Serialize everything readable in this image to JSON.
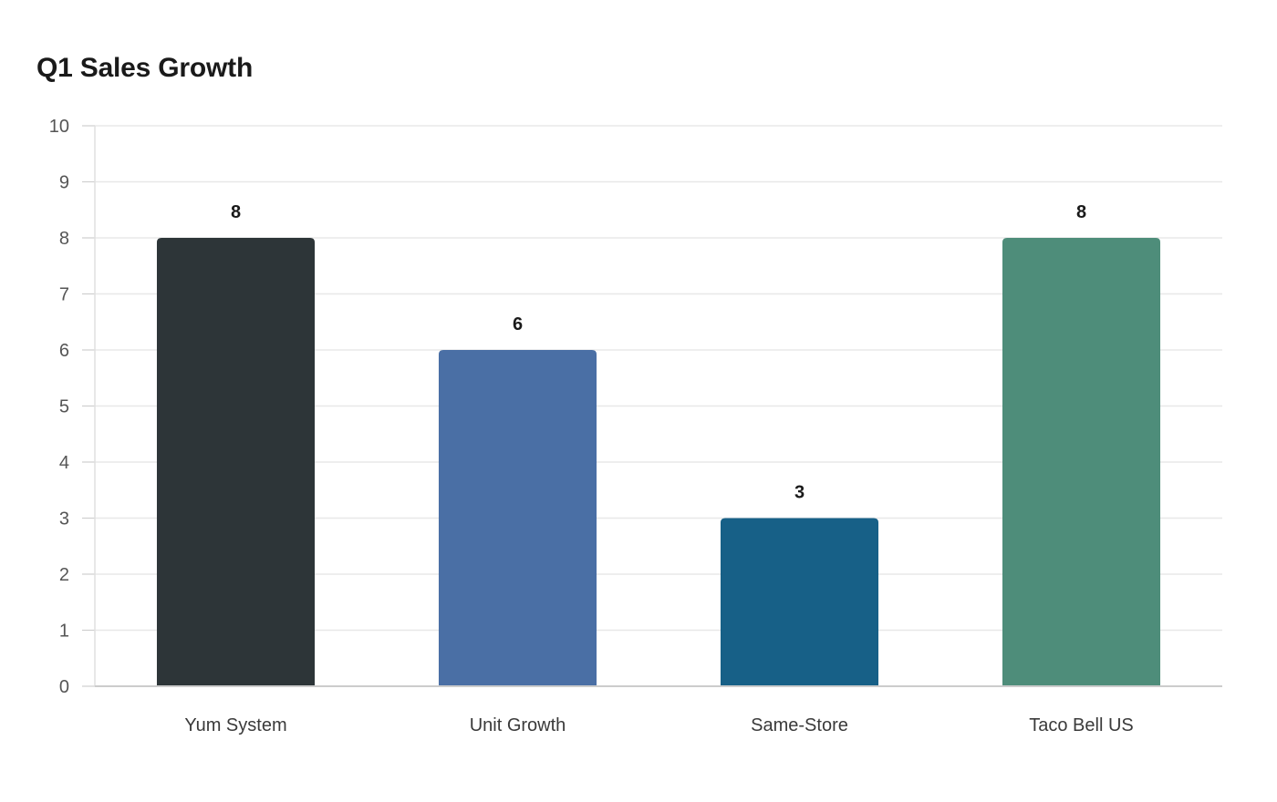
{
  "chart_data": {
    "type": "bar",
    "title": "Q1 Sales Growth",
    "xlabel": "",
    "ylabel": "",
    "categories": [
      "Yum System",
      "Unit Growth",
      "Same-Store",
      "Taco Bell US"
    ],
    "values": [
      8,
      6,
      3,
      8
    ],
    "colors": [
      "#2d3538",
      "#4a6fa5",
      "#176087",
      "#4e8d7a"
    ],
    "ylim": [
      0,
      10
    ],
    "yticks": [
      0,
      1,
      2,
      3,
      4,
      5,
      6,
      7,
      8,
      9,
      10
    ],
    "grid": true,
    "legend": "none",
    "data_labels": true
  }
}
